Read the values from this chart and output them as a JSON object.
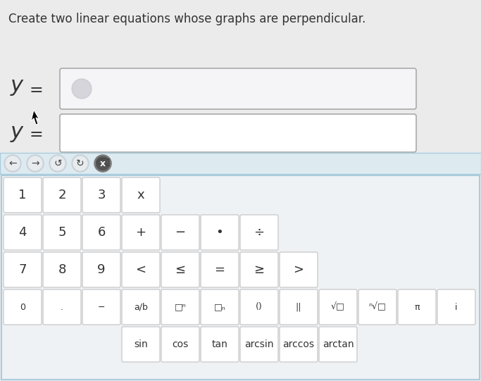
{
  "title": "Create two linear equations whose graphs are perpendicular.",
  "title_fontsize": 12,
  "title_color": "#333333",
  "bg_color": "#ebebeb",
  "input_box_color": "#ffffff",
  "input_box_border": "#aaaaaa",
  "keyboard_bg": "#eef2f5",
  "keyboard_border": "#aaccdd",
  "key_bg": "#ffffff",
  "key_border": "#cccccc",
  "key_text_color": "#333333",
  "y_label_color": "#333333",
  "y_label_fontsize": 20,
  "nav_bar_color": "#ddeaf0",
  "nav_border_color": "#aaccdd",
  "row1_keys": [
    "1",
    "2",
    "3",
    "x"
  ],
  "row2_keys": [
    "4",
    "5",
    "6",
    "+",
    "−",
    "•",
    "÷"
  ],
  "row3_keys": [
    "7",
    "8",
    "9",
    "<",
    "≤",
    "=",
    "≥",
    ">"
  ],
  "row4_keys": [
    "0",
    ".",
    "−",
    "a/b",
    "□ⁿ",
    "□ₙ",
    "()",
    "||",
    "√□",
    "ⁿ√□",
    "π",
    "i"
  ],
  "row5_keys": [
    "sin",
    "cos",
    "tan",
    "arcsin",
    "arccos",
    "arctan"
  ],
  "figsize": [
    6.83,
    5.41
  ],
  "dpi": 100
}
